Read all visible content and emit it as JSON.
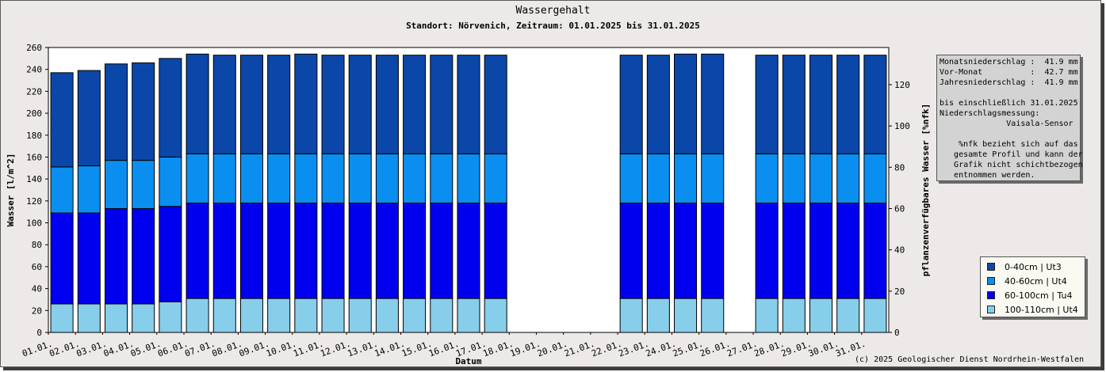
{
  "title": "Wassergehalt",
  "subtitle": "Standort: Nörvenich, Zeitraum: 01.01.2025 bis 31.01.2025",
  "copyright": "(c) 2025 Geologischer Dienst Nordrhein-Westfalen",
  "info": {
    "lines": [
      "Monatsniederschlag :  41.9 mm",
      "Vor-Monat          :  42.7 mm",
      "Jahresniederschlag :  41.9 mm",
      "",
      "bis einschließlich 31.01.2025",
      "Niederschlagsmessung:",
      "              Vaisala-Sensor",
      "",
      "    %nfk bezieht sich auf das",
      "   gesamte Profil und kann der",
      "   Grafik nicht schichtbezogen",
      "   entnommen werden."
    ]
  },
  "chart_data": {
    "type": "bar",
    "stacked": true,
    "title": "Wassergehalt",
    "xlabel": "Datum",
    "ylabel": "Wasser [l/m^2]",
    "y2label": "pflanzenverfügbares Wasser [%nfk]",
    "ylim": [
      0,
      260
    ],
    "y2lim": [
      0,
      138
    ],
    "yticks": [
      0,
      20,
      40,
      60,
      80,
      100,
      120,
      140,
      160,
      180,
      200,
      220,
      240,
      260
    ],
    "y2ticks": [
      0,
      20,
      40,
      60,
      80,
      100,
      120
    ],
    "grid": false,
    "legend_position": "right",
    "categories": [
      "01.01.",
      "02.01.",
      "03.01.",
      "04.01.",
      "05.01.",
      "06.01.",
      "07.01.",
      "08.01.",
      "09.01.",
      "10.01.",
      "11.01.",
      "12.01.",
      "13.01.",
      "14.01.",
      "15.01.",
      "16.01.",
      "17.01.",
      "18.01.",
      "19.01.",
      "20.01.",
      "21.01.",
      "22.01.",
      "23.01.",
      "24.01.",
      "25.01.",
      "26.01.",
      "27.01.",
      "28.01.",
      "29.01.",
      "30.01.",
      "31.01."
    ],
    "series": [
      {
        "name": "100-110cm | Ut4",
        "color": "#87ceeb",
        "values": [
          26,
          26,
          26,
          26,
          28,
          31,
          31,
          31,
          31,
          31,
          31,
          31,
          31,
          31,
          31,
          31,
          31,
          null,
          null,
          null,
          null,
          31,
          31,
          31,
          31,
          null,
          31,
          31,
          31,
          31,
          31
        ]
      },
      {
        "name": "60-100cm | Tu4",
        "color": "#0000ee",
        "values": [
          83,
          83,
          87,
          87,
          87,
          87,
          87,
          87,
          87,
          87,
          87,
          87,
          87,
          87,
          87,
          87,
          87,
          null,
          null,
          null,
          null,
          87,
          87,
          87,
          87,
          null,
          87,
          87,
          87,
          87,
          87
        ]
      },
      {
        "name": "40-60cm | Ut4",
        "color": "#0a8ff0",
        "values": [
          42,
          43,
          44,
          44,
          45,
          45,
          45,
          45,
          45,
          45,
          45,
          45,
          45,
          45,
          45,
          45,
          45,
          null,
          null,
          null,
          null,
          45,
          45,
          45,
          45,
          null,
          45,
          45,
          45,
          45,
          45
        ]
      },
      {
        "name": "0-40cm | Ut3",
        "color": "#0b47a8",
        "values": [
          86,
          87,
          88,
          89,
          90,
          91,
          90,
          90,
          90,
          91,
          90,
          90,
          90,
          90,
          90,
          90,
          90,
          null,
          null,
          null,
          null,
          90,
          90,
          91,
          91,
          null,
          90,
          90,
          90,
          90,
          90
        ]
      }
    ]
  }
}
